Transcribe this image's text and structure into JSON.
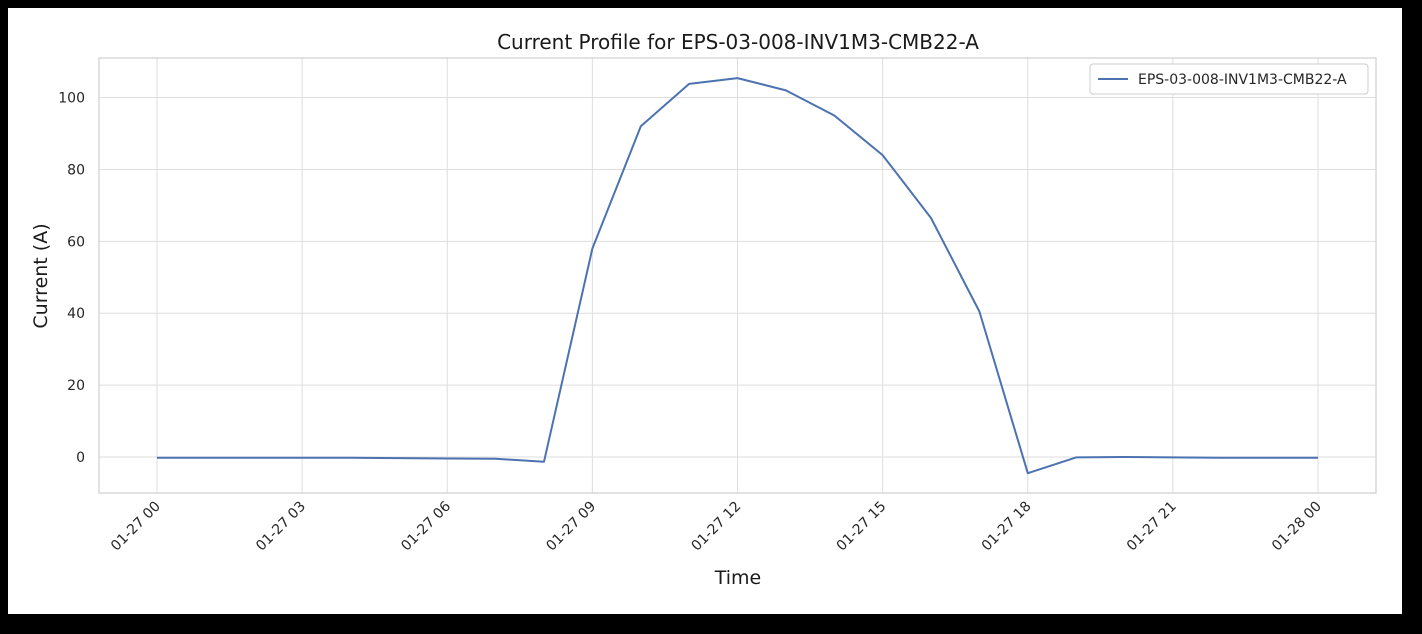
{
  "chart_data": {
    "type": "line",
    "title": "Current Profile for EPS-03-008-INV1M3-CMB22-A",
    "xlabel": "Time",
    "ylabel": "Current (A)",
    "x_tick_labels": [
      "01-27 00",
      "01-27 03",
      "01-27 06",
      "01-27 09",
      "01-27 12",
      "01-27 15",
      "01-27 18",
      "01-27 21",
      "01-28 00"
    ],
    "y_ticks": [
      0,
      20,
      40,
      60,
      80,
      100
    ],
    "ylim": [
      -10,
      111
    ],
    "xlim": [
      "01-26 22:48",
      "01-28 01:12"
    ],
    "grid": true,
    "legend": "top-right",
    "series": [
      {
        "name": "EPS-03-008-INV1M3-CMB22-A",
        "color": "#4c72b0",
        "x": [
          "01-27 00",
          "01-27 01",
          "01-27 02",
          "01-27 03",
          "01-27 04",
          "01-27 05",
          "01-27 06",
          "01-27 07",
          "01-27 08",
          "01-27 09",
          "01-27 10",
          "01-27 11",
          "01-27 12",
          "01-27 13",
          "01-27 14",
          "01-27 15",
          "01-27 16",
          "01-27 17",
          "01-27 18",
          "01-27 19",
          "01-27 20",
          "01-27 21",
          "01-27 22",
          "01-27 23",
          "01-28 00"
        ],
        "values": [
          -0.2,
          -0.2,
          -0.2,
          -0.2,
          -0.2,
          -0.3,
          -0.4,
          -0.5,
          -1.3,
          58,
          92,
          103.8,
          105.4,
          102,
          95,
          84,
          66.5,
          40.5,
          -4.5,
          -0.1,
          0,
          -0.1,
          -0.2,
          -0.2,
          -0.2
        ]
      }
    ]
  },
  "colors": {
    "line": "#4c72b0",
    "grid": "#dedede",
    "frame": "#000000"
  }
}
